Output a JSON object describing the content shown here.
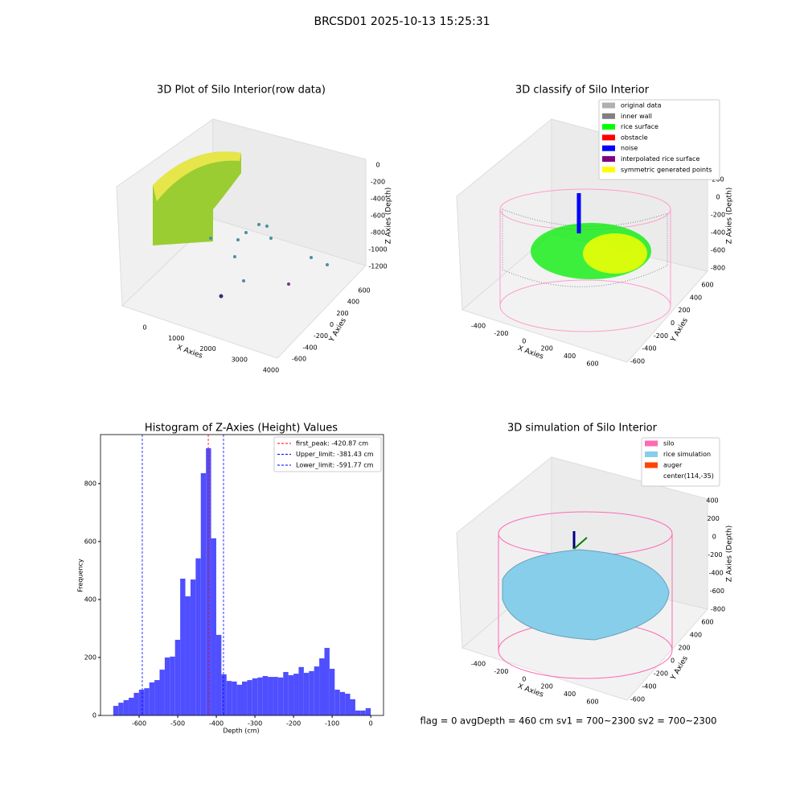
{
  "title": "BRCSD01 2025-10-13 15:25:31",
  "footer": "flag = 0     avgDepth = 460 cm  sv1 = 700~2300  sv2 = 700~2300",
  "chart_data": [
    {
      "type": "scatter3d",
      "title": "3D Plot of Silo Interior(row data)",
      "xlabel": "X Axies",
      "ylabel": "Y Axies",
      "zlabel": "Z Axies (Depth)",
      "xticks": [
        0,
        1000,
        2000,
        3000,
        4000
      ],
      "yticks": [
        -600,
        -400,
        -200,
        0,
        200,
        400,
        600
      ],
      "zticks": [
        0,
        -200,
        -400,
        -600,
        -800,
        -1000,
        -1200
      ]
    },
    {
      "type": "scatter3d",
      "title": "3D classify of Silo Interior",
      "xlabel": "X Axies",
      "ylabel": "Y Axies",
      "zlabel": "Z Axies (Depth)",
      "xticks": [
        -400,
        -200,
        0,
        200,
        400,
        600
      ],
      "yticks": [
        -600,
        -400,
        -200,
        0,
        200,
        400,
        600
      ],
      "zticks": [
        200,
        0,
        -200,
        -400,
        -600,
        -800
      ],
      "legend": [
        {
          "name": "original data",
          "color": "#b0b0b0"
        },
        {
          "name": "inner wall",
          "color": "#808080"
        },
        {
          "name": "rice surface",
          "color": "#00ff00"
        },
        {
          "name": "obstacle",
          "color": "#ff0000"
        },
        {
          "name": "noise",
          "color": "#0000ff"
        },
        {
          "name": "interpolated rice surface",
          "color": "#800080"
        },
        {
          "name": "symmetric generated points",
          "color": "#ffff00"
        }
      ]
    },
    {
      "type": "histogram",
      "title": "Histogram of Z-Axies (Height) Values",
      "xlabel": "Depth (cm)",
      "ylabel": "Frequency",
      "color": "#4f4fff",
      "bins": [
        -667,
        -653.66,
        -640.32,
        -626.98,
        -613.64,
        -600.3,
        -586.96,
        -573.62,
        -560.28,
        -546.94,
        -533.6,
        -520.26,
        -506.92,
        -493.58,
        -480.24,
        -466.9,
        -453.56,
        -440.22,
        -426.88,
        -413.54,
        -400.2,
        -386.86,
        -373.52,
        -360.18,
        -346.84,
        -333.5,
        -320.16,
        -306.82,
        -293.48,
        -280.14,
        -266.8,
        -253.46,
        -240.12,
        -226.78,
        -213.44,
        -200.1,
        -186.76,
        -173.42,
        -160.08,
        -146.74,
        -133.4,
        -120.06,
        -106.72,
        -93.38,
        -80.04,
        -66.7,
        -53.36,
        -40.02,
        -26.68,
        -13.34,
        0
      ],
      "values": [
        33,
        44,
        53,
        61,
        78,
        89,
        94,
        114,
        122,
        158,
        200,
        203,
        261,
        472,
        411,
        469,
        542,
        836,
        922,
        611,
        278,
        142,
        119,
        117,
        106,
        117,
        122,
        128,
        131,
        136,
        133,
        133,
        131,
        150,
        139,
        144,
        167,
        147,
        153,
        169,
        197,
        233,
        161,
        89,
        81,
        75,
        56,
        17,
        17,
        25
      ],
      "xlim": [
        -700,
        33
      ],
      "ylim": [
        0,
        969
      ],
      "xticks": [
        -600,
        -500,
        -400,
        -300,
        -200,
        -100,
        0
      ],
      "yticks": [
        0,
        200,
        400,
        600,
        800
      ],
      "lines": [
        {
          "value": -420.87,
          "label": "first_peak: -420.87 cm",
          "color": "#ff0000"
        },
        {
          "value": -381.43,
          "label": "Upper_limit: -381.43 cm",
          "color": "#0000ff"
        },
        {
          "value": -591.77,
          "label": "Lower_limit: -591.77 cm",
          "color": "#0000ff"
        }
      ]
    },
    {
      "type": "surface3d",
      "title": "3D simulation of Silo Interior",
      "xlabel": "X Axies",
      "ylabel": "Y Axies",
      "zlabel": "Z Axies (Depth)",
      "xticks": [
        -400,
        -200,
        0,
        200,
        400,
        600
      ],
      "yticks": [
        -600,
        -400,
        -200,
        0,
        200,
        400,
        600
      ],
      "zticks": [
        400,
        200,
        0,
        -200,
        -400,
        -600,
        -800
      ],
      "legend": [
        {
          "name": "silo",
          "color": "#ff69b4"
        },
        {
          "name": "rice simulation",
          "color": "#87ceeb"
        },
        {
          "name": "auger",
          "color": "#ff4500"
        },
        {
          "name": "center(114,-35)"
        }
      ]
    }
  ]
}
